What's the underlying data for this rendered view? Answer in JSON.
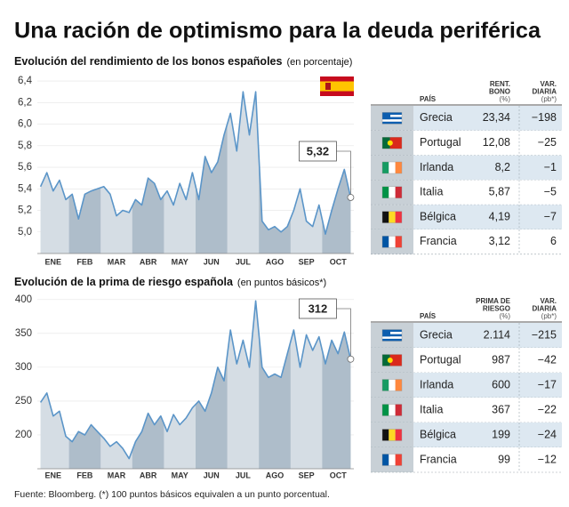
{
  "title": "Una ración de optimismo para la deuda periférica",
  "chart_data": [
    {
      "type": "area",
      "title": "Evolución del rendimiento de los bonos españoles",
      "subtitle": "(en porcentaje)",
      "categories": [
        null,
        null,
        "ENE",
        null,
        null,
        null,
        null,
        "FEB",
        null,
        null,
        null,
        null,
        "MAR",
        null,
        null,
        null,
        null,
        "ABR",
        null,
        null,
        null,
        null,
        "MAY",
        null,
        null,
        null,
        null,
        "JUN",
        null,
        null,
        null,
        null,
        "JUL",
        null,
        null,
        null,
        null,
        "AGO",
        null,
        null,
        null,
        null,
        "SEP",
        null,
        null,
        null,
        null,
        "OCT",
        null,
        null
      ],
      "values": [
        5.42,
        5.55,
        5.38,
        5.48,
        5.3,
        5.35,
        5.12,
        5.35,
        5.38,
        5.4,
        5.42,
        5.35,
        5.15,
        5.2,
        5.18,
        5.3,
        5.25,
        5.5,
        5.45,
        5.3,
        5.38,
        5.25,
        5.45,
        5.3,
        5.55,
        5.3,
        5.7,
        5.55,
        5.65,
        5.9,
        6.1,
        5.75,
        6.3,
        5.9,
        6.3,
        5.1,
        5.02,
        5.05,
        5.0,
        5.05,
        5.2,
        5.4,
        5.1,
        5.05,
        5.25,
        4.98,
        5.2,
        5.4,
        5.58,
        5.32
      ],
      "color": "#5b95c8",
      "ylim": [
        4.8,
        6.45
      ],
      "yticks": [
        {
          "value": 5,
          "label": "5,0"
        },
        {
          "value": 5.2,
          "label": "5,2"
        },
        {
          "value": 5.4,
          "label": "5,4"
        },
        {
          "value": 5.6,
          "label": "5,6"
        },
        {
          "value": 5.8,
          "label": "5,8"
        },
        {
          "value": 6,
          "label": "6,0"
        },
        {
          "value": 6.2,
          "label": "6,2"
        },
        {
          "value": 6.4,
          "label": "6,4"
        }
      ],
      "annotation": "5,32"
    },
    {
      "type": "area",
      "title": "Evolución de la prima de riesgo española",
      "subtitle": "(en puntos básicos*)",
      "categories": [
        null,
        null,
        "ENE",
        null,
        null,
        null,
        null,
        "FEB",
        null,
        null,
        null,
        null,
        "MAR",
        null,
        null,
        null,
        null,
        "ABR",
        null,
        null,
        null,
        null,
        "MAY",
        null,
        null,
        null,
        null,
        "JUN",
        null,
        null,
        null,
        null,
        "JUL",
        null,
        null,
        null,
        null,
        "AGO",
        null,
        null,
        null,
        null,
        "SEP",
        null,
        null,
        null,
        null,
        "OCT",
        null,
        null
      ],
      "values": [
        248,
        262,
        228,
        235,
        198,
        190,
        205,
        200,
        215,
        205,
        195,
        183,
        190,
        180,
        165,
        190,
        205,
        232,
        215,
        228,
        205,
        230,
        215,
        225,
        240,
        250,
        235,
        262,
        300,
        280,
        355,
        305,
        340,
        300,
        398,
        300,
        285,
        290,
        285,
        320,
        355,
        300,
        348,
        325,
        345,
        305,
        340,
        320,
        352,
        312
      ],
      "color": "#5b95c8",
      "ylim": [
        150,
        405
      ],
      "yticks": [
        200,
        250,
        300,
        350,
        400
      ],
      "annotation": "312"
    }
  ],
  "tables": [
    {
      "columns": [
        {
          "label": [
            "PAÍS"
          ]
        },
        {
          "label": [
            "RENT.",
            "BONO"
          ],
          "unit": "(%)"
        },
        {
          "label": [
            "VAR.",
            "DIARIA"
          ],
          "unit": "(pb*)"
        }
      ],
      "rows": [
        [
          "Grecia",
          "23,34",
          "−198"
        ],
        [
          "Portugal",
          "12,08",
          "−25"
        ],
        [
          "Irlanda",
          "8,2",
          "−1"
        ],
        [
          "Italia",
          "5,87",
          "−5"
        ],
        [
          "Bélgica",
          "4,19",
          "−7"
        ],
        [
          "Francia",
          "3,12",
          "6"
        ]
      ]
    },
    {
      "columns": [
        {
          "label": [
            "PAÍS"
          ]
        },
        {
          "label": [
            "PRIMA DE",
            "RIESGO"
          ],
          "unit": "(%)"
        },
        {
          "label": [
            "VAR.",
            "DIARIA"
          ],
          "unit": "(pb*)"
        }
      ],
      "rows": [
        [
          "Grecia",
          "2.114",
          "−215"
        ],
        [
          "Portugal",
          "987",
          "−42"
        ],
        [
          "Irlanda",
          "600",
          "−17"
        ],
        [
          "Italia",
          "367",
          "−22"
        ],
        [
          "Bélgica",
          "199",
          "−24"
        ],
        [
          "Francia",
          "99",
          "−12"
        ]
      ]
    }
  ],
  "footer": "Fuente: Bloomberg. (*) 100 puntos básicos equivalen a un punto porcentual."
}
